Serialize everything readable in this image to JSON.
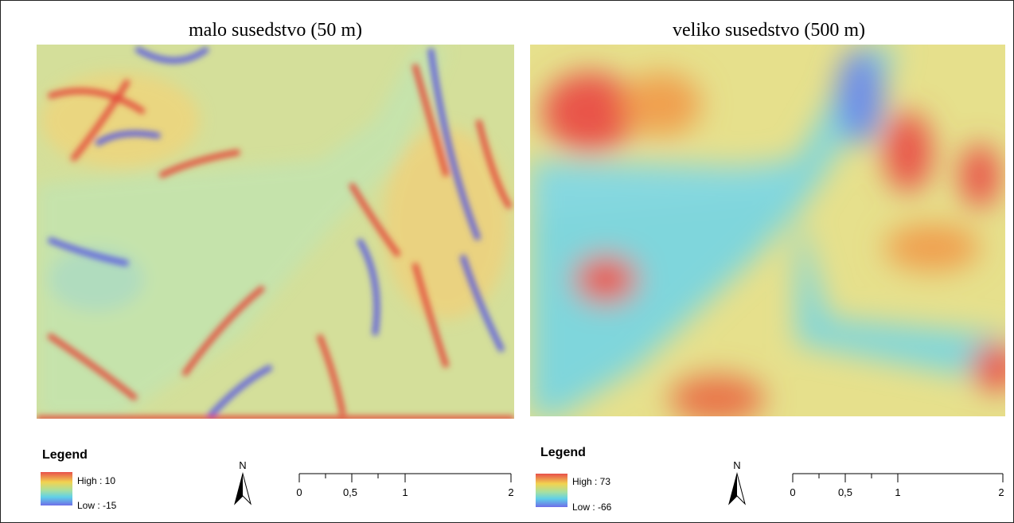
{
  "panels": [
    {
      "title": "malo susedstvo (50 m)",
      "legend": {
        "title": "Legend",
        "high": "High : 10",
        "low": "Low : -15"
      },
      "north": "N",
      "scale": [
        "0",
        "0,5",
        "1",
        "2"
      ]
    },
    {
      "title": "veliko susedstvo (500 m)",
      "legend": {
        "title": "Legend",
        "high": "High : 73",
        "low": "Low : -66"
      },
      "north": "N",
      "scale": [
        "0",
        "0,5",
        "1",
        "2"
      ]
    }
  ]
}
